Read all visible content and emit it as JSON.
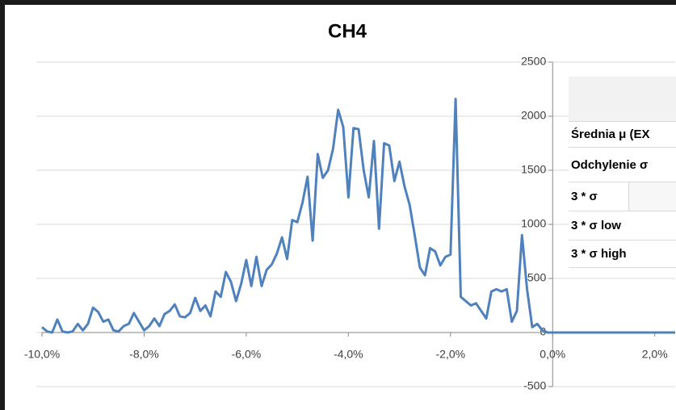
{
  "chart_data": {
    "type": "line",
    "title": "CH4",
    "x": [
      -10.0,
      -9.9,
      -9.8,
      -9.7,
      -9.6,
      -9.5,
      -9.4,
      -9.3,
      -9.2,
      -9.1,
      -9.0,
      -8.9,
      -8.8,
      -8.7,
      -8.6,
      -8.5,
      -8.4,
      -8.3,
      -8.2,
      -8.1,
      -8.0,
      -7.9,
      -7.8,
      -7.7,
      -7.6,
      -7.5,
      -7.4,
      -7.3,
      -7.2,
      -7.1,
      -7.0,
      -6.9,
      -6.8,
      -6.7,
      -6.6,
      -6.5,
      -6.4,
      -6.3,
      -6.2,
      -6.1,
      -6.0,
      -5.9,
      -5.8,
      -5.7,
      -5.6,
      -5.5,
      -5.4,
      -5.3,
      -5.2,
      -5.1,
      -5.0,
      -4.9,
      -4.8,
      -4.7,
      -4.6,
      -4.5,
      -4.4,
      -4.3,
      -4.2,
      -4.1,
      -4.0,
      -3.9,
      -3.8,
      -3.7,
      -3.6,
      -3.5,
      -3.4,
      -3.3,
      -3.2,
      -3.1,
      -3.0,
      -2.9,
      -2.8,
      -2.7,
      -2.6,
      -2.5,
      -2.4,
      -2.3,
      -2.2,
      -2.1,
      -2.0,
      -1.9,
      -1.8,
      -1.7,
      -1.6,
      -1.5,
      -1.4,
      -1.3,
      -1.2,
      -1.1,
      -1.0,
      -0.9,
      -0.8,
      -0.7,
      -0.6,
      -0.5,
      -0.4,
      -0.3,
      -0.2,
      -0.1,
      0.0,
      2.4
    ],
    "series": [
      {
        "color": "#4f81bd",
        "values": [
          50,
          10,
          0,
          120,
          10,
          0,
          10,
          80,
          20,
          80,
          230,
          190,
          100,
          120,
          20,
          10,
          60,
          80,
          180,
          100,
          20,
          60,
          130,
          60,
          170,
          200,
          260,
          150,
          140,
          180,
          320,
          200,
          250,
          150,
          380,
          330,
          560,
          470,
          290,
          450,
          670,
          430,
          700,
          430,
          580,
          630,
          730,
          880,
          680,
          1040,
          1020,
          1200,
          1440,
          850,
          1650,
          1430,
          1500,
          1700,
          2060,
          1900,
          1250,
          1890,
          1880,
          1500,
          1250,
          1770,
          960,
          1750,
          1730,
          1400,
          1580,
          1350,
          1180,
          900,
          600,
          530,
          780,
          750,
          620,
          700,
          720,
          2160,
          330,
          290,
          250,
          270,
          200,
          130,
          380,
          400,
          380,
          400,
          100,
          200,
          900,
          400,
          50,
          80,
          20,
          0,
          0,
          0
        ]
      }
    ],
    "xlim": [
      -10,
      2.4
    ],
    "xticks": [
      {
        "value": -10,
        "label": "-10,0%"
      },
      {
        "value": -8,
        "label": "-8,0%"
      },
      {
        "value": -6,
        "label": "-6,0%"
      },
      {
        "value": -4,
        "label": "-4,0%"
      },
      {
        "value": -2,
        "label": "-2,0%"
      },
      {
        "value": 0,
        "label": "0,0%"
      },
      {
        "value": 2,
        "label": "2,0%"
      }
    ],
    "ylim": [
      -500,
      2500
    ],
    "yticks": [
      -500,
      0,
      500,
      1000,
      1500,
      2000,
      2500
    ],
    "grid": true
  },
  "table": {
    "rows": [
      "Średnia μ (EX",
      "Odchylenie σ",
      "3 * σ",
      "3 * σ low",
      "3 * σ high"
    ]
  }
}
